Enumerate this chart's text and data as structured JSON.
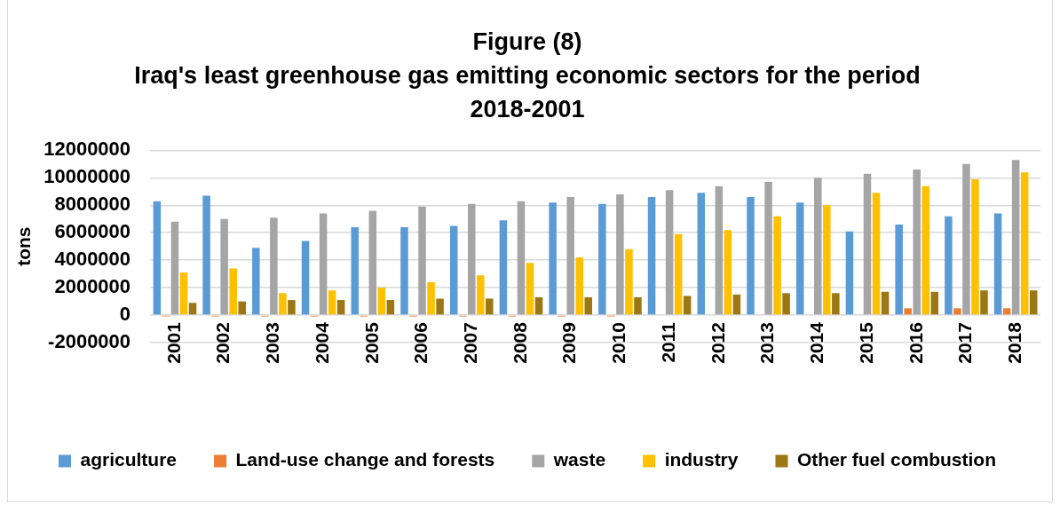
{
  "chart_data": {
    "type": "bar",
    "title": "Figure (8)\nIraq's least greenhouse gas emitting economic sectors for the period\n2018-2001",
    "ylabel": "tons",
    "categories": [
      "2001",
      "2002",
      "2003",
      "2004",
      "2005",
      "2006",
      "2007",
      "2008",
      "2009",
      "2010",
      "2011",
      "2012",
      "2013",
      "2014",
      "2015",
      "2016",
      "2017",
      "2018"
    ],
    "series": [
      {
        "name": "agriculture",
        "color": "#5b9bd5",
        "values": [
          8300000,
          8700000,
          4900000,
          5400000,
          6400000,
          6400000,
          6500000,
          6900000,
          8200000,
          8100000,
          8600000,
          8900000,
          8600000,
          8200000,
          6100000,
          6600000,
          7200000,
          7400000
        ]
      },
      {
        "name": "Land-use change and forests",
        "color": "#ed7d31",
        "values": [
          -100000,
          -100000,
          -100000,
          -100000,
          -100000,
          -100000,
          -100000,
          -100000,
          -100000,
          -100000,
          0,
          0,
          0,
          0,
          0,
          500000,
          500000,
          500000
        ]
      },
      {
        "name": "waste",
        "color": "#a5a5a5",
        "values": [
          6800000,
          7000000,
          7100000,
          7400000,
          7600000,
          7900000,
          8100000,
          8300000,
          8600000,
          8800000,
          9100000,
          9400000,
          9700000,
          10000000,
          10300000,
          10600000,
          11000000,
          11300000
        ]
      },
      {
        "name": "industry",
        "color": "#ffc000",
        "values": [
          3100000,
          3400000,
          1600000,
          1800000,
          2000000,
          2400000,
          2900000,
          3800000,
          4200000,
          4800000,
          5900000,
          6200000,
          7200000,
          8000000,
          8900000,
          9400000,
          9900000,
          10400000
        ]
      },
      {
        "name": "Other fuel combustion",
        "color": "#9c7714",
        "values": [
          900000,
          1000000,
          1100000,
          1100000,
          1100000,
          1200000,
          1200000,
          1300000,
          1300000,
          1300000,
          1400000,
          1500000,
          1600000,
          1600000,
          1700000,
          1700000,
          1800000,
          1800000
        ]
      }
    ],
    "ylim": [
      -2000000,
      12000000
    ],
    "yticks": [
      -2000000,
      0,
      2000000,
      4000000,
      6000000,
      8000000,
      10000000,
      12000000
    ],
    "grid": "y",
    "legend": "bottom"
  }
}
